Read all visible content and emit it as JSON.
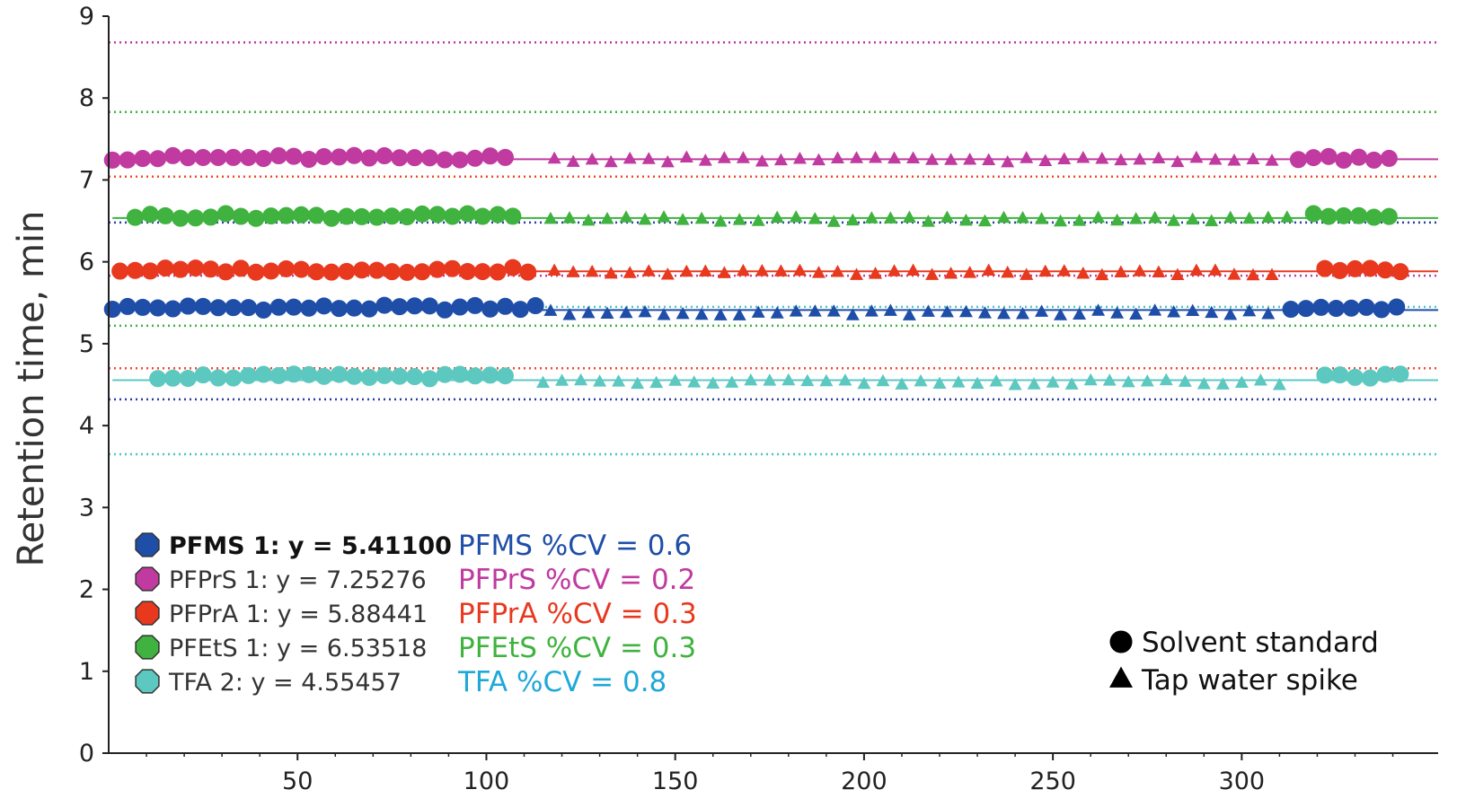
{
  "chart_data": {
    "type": "scatter",
    "title": "",
    "xlabel": "",
    "ylabel": "Retention time, min",
    "xlim": [
      0,
      352
    ],
    "ylim": [
      0,
      9
    ],
    "xticks": [
      50,
      100,
      150,
      200,
      250,
      300
    ],
    "yticks": [
      0,
      1,
      2,
      3,
      4,
      5,
      6,
      7,
      8,
      9
    ],
    "grid": false,
    "marker_legend": [
      {
        "label": "Solvent standard",
        "marker": "circle"
      },
      {
        "label": "Tap water spike",
        "marker": "triangle"
      }
    ],
    "series": [
      {
        "name": "PFMS",
        "legend_label": "PFMS 1: y = 5.41100",
        "cv_label": "PFMS %CV = 0.6",
        "color": "#1f4ea8",
        "cv_color": "#1f4ea8",
        "mean": 5.411,
        "limits": [
          5.45,
          4.32
        ],
        "limit_colors": [
          "#4fc3c3",
          "#2b3ea8"
        ],
        "solvent_x_ranges": [
          [
            1,
            113
          ],
          [
            313,
            344
          ]
        ],
        "solvent_y": 5.44,
        "spike_x_range": [
          117,
          308
        ],
        "spike_y": 5.37
      },
      {
        "name": "PFPrS",
        "legend_label": "PFPrS 1: y = 7.25276",
        "cv_label": "PFPrS %CV = 0.2",
        "color": "#c03aa0",
        "cv_color": "#c03aa0",
        "mean": 7.25276,
        "limits": [
          8.68,
          7.04
        ],
        "limit_colors": [
          "#c03aa0",
          "#f04a2a"
        ],
        "solvent_x_ranges": [
          [
            1,
            105
          ],
          [
            315,
            339
          ]
        ],
        "solvent_y": 7.27,
        "spike_x_range": [
          118,
          312
        ],
        "spike_y": 7.24
      },
      {
        "name": "PFPrA",
        "legend_label": "PFPrA 1: y = 5.88441",
        "cv_label": "PFPrA %CV = 0.3",
        "color": "#e8391f",
        "cv_color": "#e8391f",
        "mean": 5.88441,
        "limits": [
          5.83,
          4.7
        ],
        "limit_colors": [
          "#c03aa0",
          "#f04a2a"
        ],
        "solvent_x_ranges": [
          [
            3,
            114
          ],
          [
            322,
            344
          ]
        ],
        "solvent_y": 5.9,
        "spike_x_range": [
          118,
          308
        ],
        "spike_y": 5.86
      },
      {
        "name": "PFEtS",
        "legend_label": "PFEtS 1: y = 6.53518",
        "cv_label": "PFEtS %CV = 0.3",
        "color": "#3fb23f",
        "cv_color": "#3fb23f",
        "mean": 6.53518,
        "limits": [
          7.83,
          5.22
        ],
        "limit_colors": [
          "#3fb23f",
          "#3fb23f"
        ],
        "solvent_x_ranges": [
          [
            7,
            108
          ],
          [
            319,
            342
          ]
        ],
        "solvent_y": 6.56,
        "spike_x_range": [
          117,
          313
        ],
        "spike_y": 6.51
      },
      {
        "name": "TFA",
        "legend_label": "TFA 2: y = 4.55457",
        "cv_label": "TFA %CV = 0.8",
        "color": "#5cc8c0",
        "cv_color": "#1fa8d8",
        "mean": 4.55457,
        "limits": [
          6.48,
          3.65
        ],
        "limit_colors": [
          "#2b3ea8",
          "#4fc3c3"
        ],
        "solvent_x_ranges": [
          [
            13,
            107
          ],
          [
            322,
            342
          ]
        ],
        "solvent_y": 4.6,
        "spike_x_range": [
          115,
          314
        ],
        "spike_y": 4.52
      }
    ]
  }
}
